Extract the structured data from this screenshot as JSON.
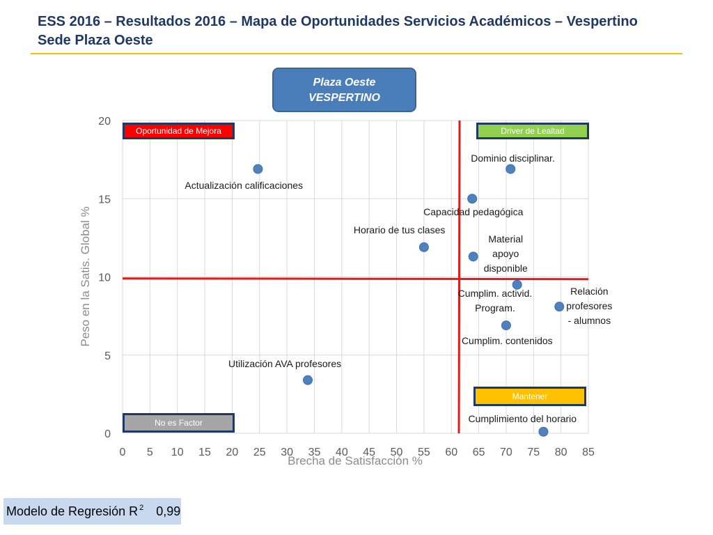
{
  "title": {
    "line1": "ESS 2016 – Resultados 2016 – Mapa de Oportunidades Servicios Académicos  – Vespertino",
    "line2": "Sede Plaza Oeste"
  },
  "segment_box": {
    "line1": "Plaza Oeste",
    "line2": "VESPERTINO"
  },
  "model": {
    "label": "Modelo de Regresión R",
    "superscript": "2",
    "value": "0,99"
  },
  "colors": {
    "title": "#1f3864",
    "title_rule": "#f2c200",
    "marker": "#4f81bd",
    "reference_lines": "#e01b1b",
    "oportunidad": "#ff0000",
    "driver": "#92d050",
    "mantener": "#ffc000",
    "no_factor": "#a6a6a6"
  },
  "quadrants": {
    "top_left": "Oportunidad de Mejora",
    "top_right": "Driver de Lealtad",
    "bottom_right": "Mantener",
    "bottom_left": "No es Factor"
  },
  "chart_data": {
    "type": "scatter",
    "title": "",
    "xlabel": "Brecha de Satisfacción %",
    "ylabel": "Peso en la Satis. Global %",
    "xlim": [
      0,
      85
    ],
    "ylim": [
      0,
      20
    ],
    "xticks": [
      0,
      5,
      10,
      15,
      20,
      25,
      30,
      35,
      40,
      45,
      50,
      55,
      60,
      65,
      70,
      75,
      80,
      85
    ],
    "yticks": [
      0,
      5,
      10,
      15,
      20
    ],
    "grid": true,
    "reference_lines": {
      "x": 61.5,
      "y": 9.9
    },
    "points": [
      {
        "label": "Actualización calificaciones",
        "x": 24.7,
        "y": 16.9
      },
      {
        "label": "Dominio disciplinar.",
        "x": 70.8,
        "y": 16.9
      },
      {
        "label": "Capacidad pedagógica",
        "x": 63.8,
        "y": 15.0
      },
      {
        "label": "Horario de tus clases",
        "x": 55.0,
        "y": 11.9
      },
      {
        "label": "Material apoyo disponible",
        "x": 64.0,
        "y": 11.3
      },
      {
        "label": "Cumplim. activid. Program.",
        "x": 72.0,
        "y": 9.5
      },
      {
        "label": "Relación profesores - alumnos",
        "x": 79.7,
        "y": 8.1
      },
      {
        "label": "Cumplim. contenidos",
        "x": 70.0,
        "y": 6.9
      },
      {
        "label": "Utilización AVA profesores",
        "x": 33.8,
        "y": 3.4
      },
      {
        "label": "Cumplimiento del horario",
        "x": 76.8,
        "y": 0.1
      }
    ]
  }
}
